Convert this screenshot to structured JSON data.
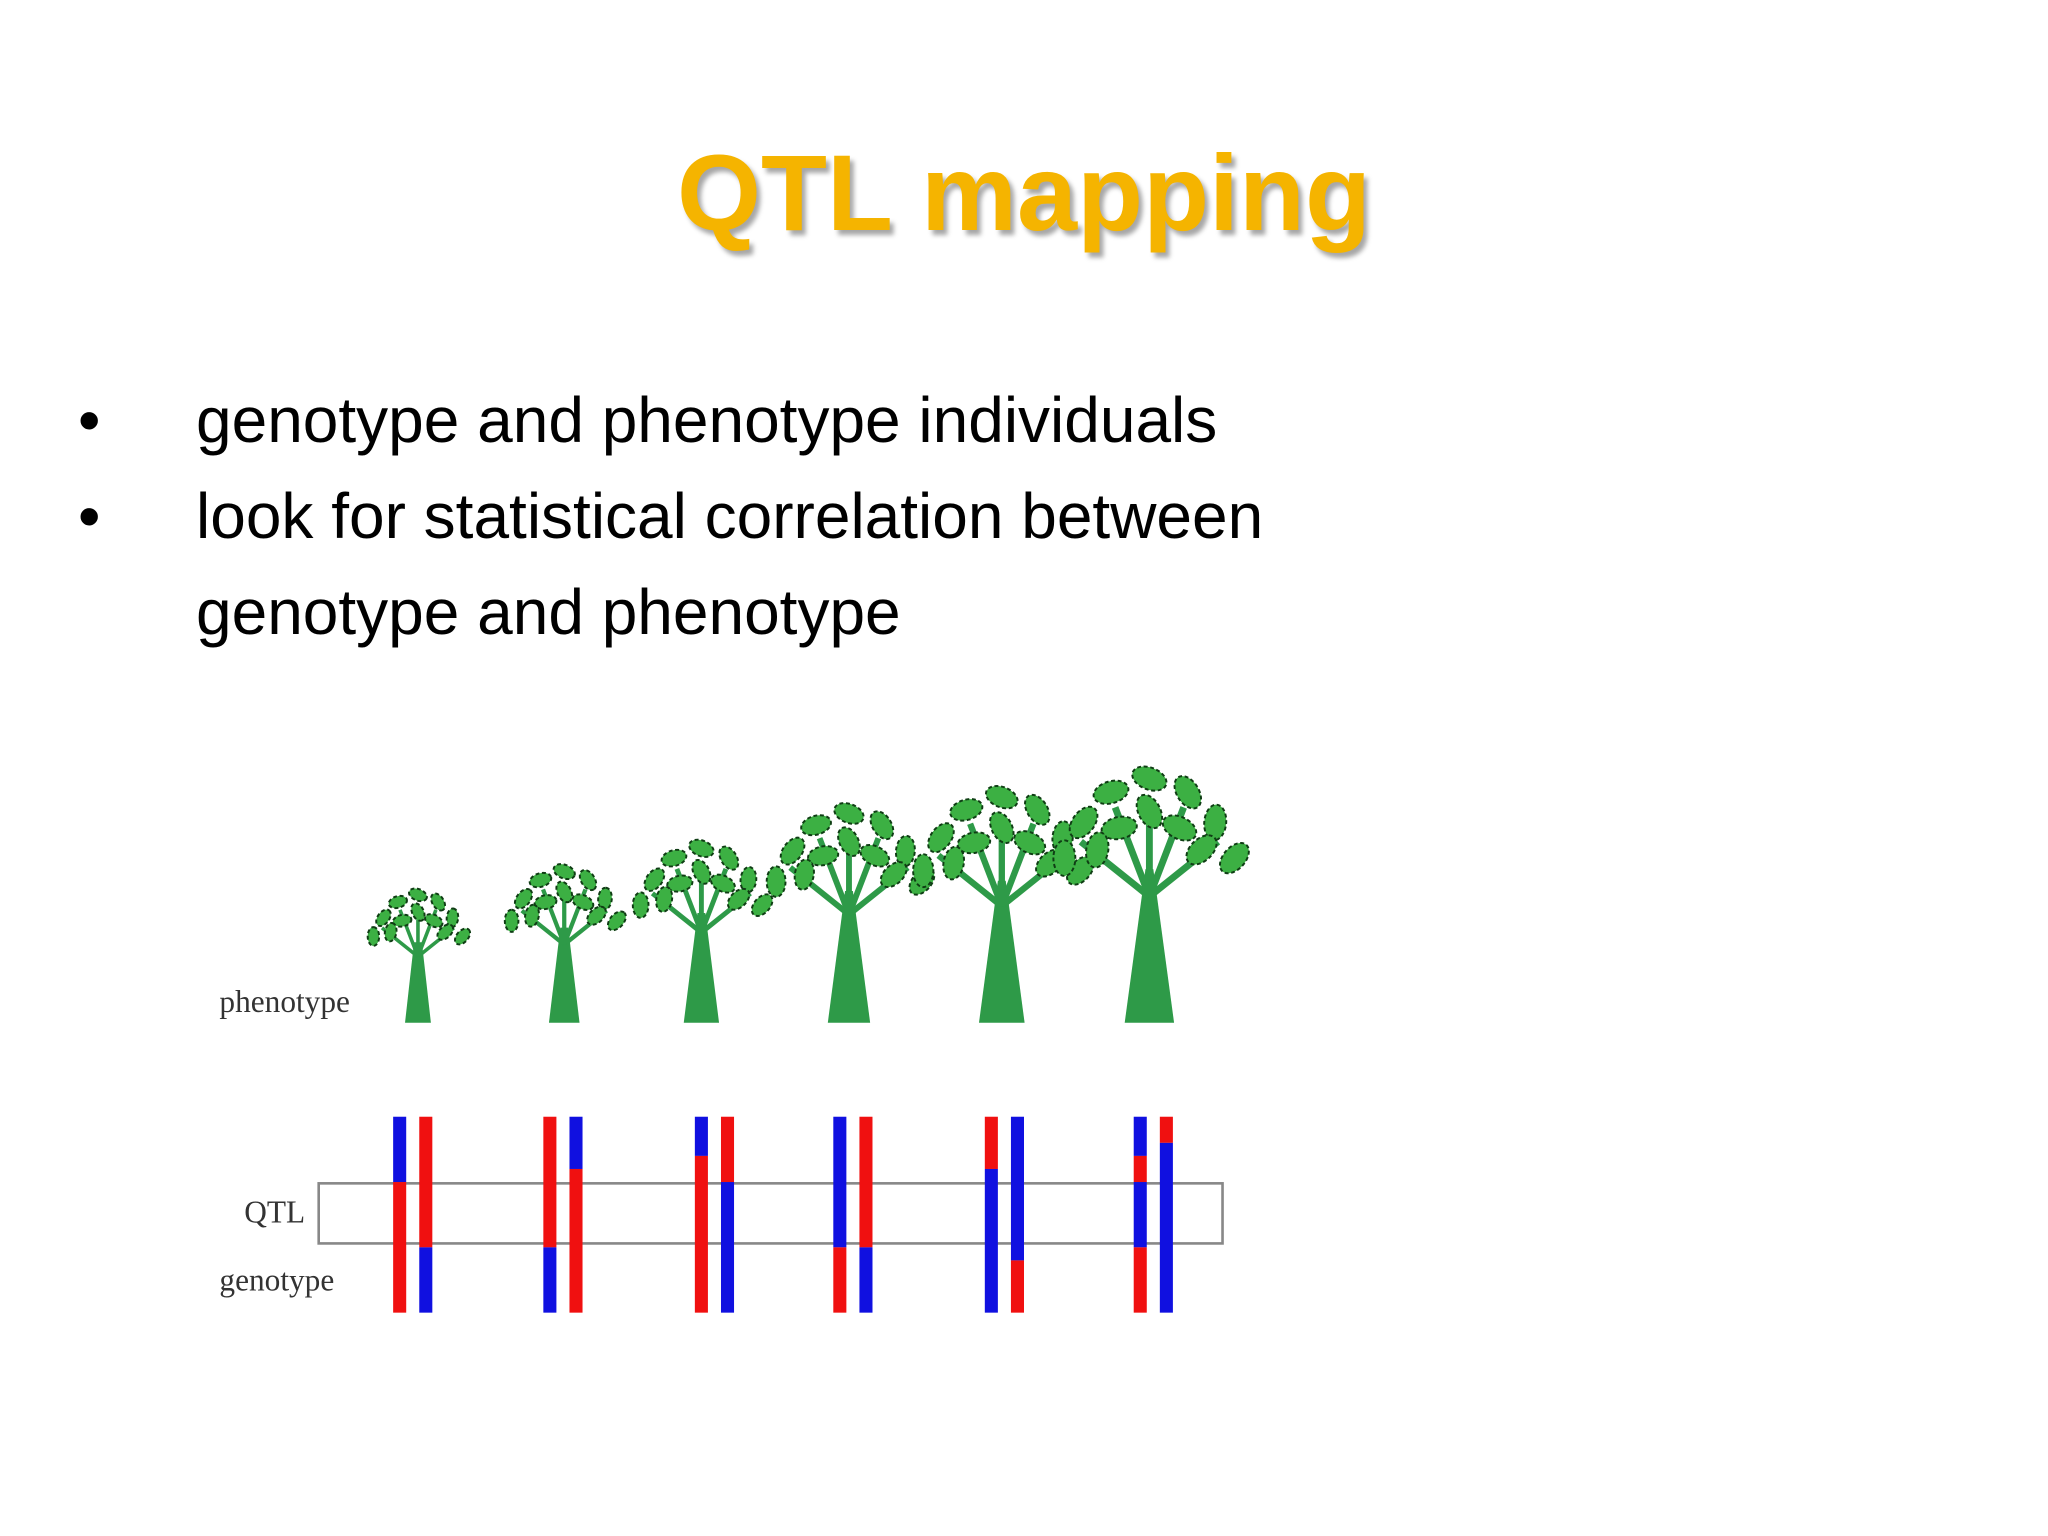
{
  "header": {
    "title": "QTL mapping"
  },
  "bullets": [
    "genotype and phenotype individuals",
    "look for statistical correlation between genotype and phenotype"
  ],
  "figure": {
    "labels": {
      "phenotype": "phenotype",
      "qtl": "QTL",
      "genotype": "genotype"
    }
  }
}
